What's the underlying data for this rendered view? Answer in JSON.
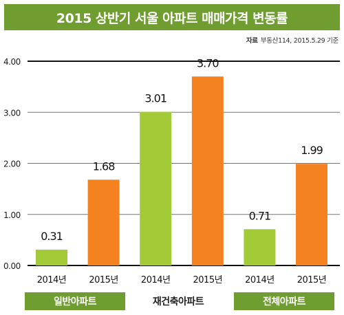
{
  "title": "2015 상반기 서울 아파트 매매가격 변동률",
  "source": {
    "label": "자료",
    "text": "부동산114, 2015.5.29 기준"
  },
  "colors": {
    "green": "#a3cb38",
    "orange": "#f58220",
    "dark_green": "#6f9d2f"
  },
  "chart_data": {
    "type": "bar",
    "categories": [
      "2014년",
      "2015년",
      "2014년",
      "2015년",
      "2014년",
      "2015년"
    ],
    "values": [
      0.31,
      1.68,
      3.01,
      3.7,
      0.71,
      1.99
    ],
    "value_labels": [
      "0.31",
      "1.68",
      "3.01",
      "3.70",
      "0.71",
      "1.99"
    ],
    "bar_colors": [
      "#a3cb38",
      "#f58220",
      "#a3cb38",
      "#f58220",
      "#a3cb38",
      "#f58220"
    ],
    "groups": [
      "일반아파트",
      "재건축아파트",
      "전체아파트"
    ],
    "yticks": [
      "0.00",
      "1.00",
      "2.00",
      "3.00",
      "4.00"
    ],
    "ylim": [
      0,
      4
    ],
    "grid": true
  }
}
